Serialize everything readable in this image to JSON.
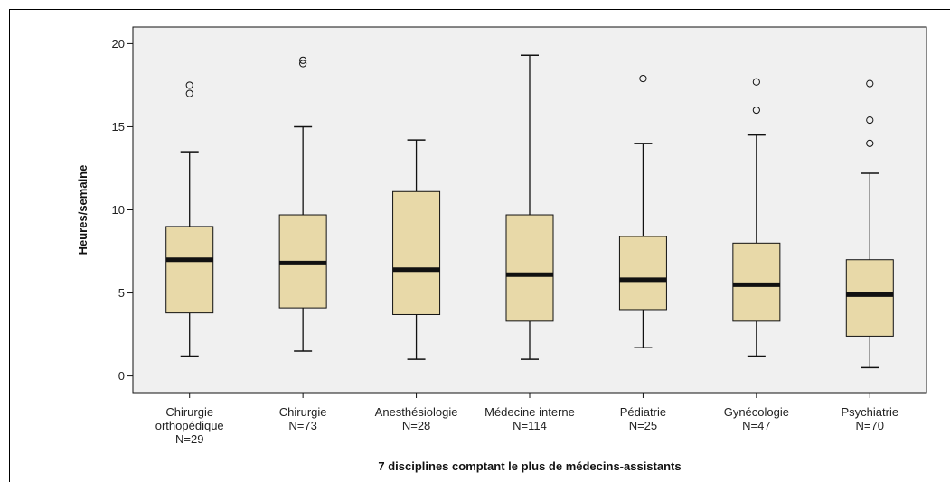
{
  "chart_data": {
    "type": "boxplot",
    "title": "",
    "xlabel": "7 disciplines comptant le plus de médecins-assistants",
    "ylabel": "Heures/semaine",
    "ylim": [
      -1,
      21
    ],
    "yticks": [
      0,
      5,
      10,
      15,
      20
    ],
    "ytick_labels": [
      "0",
      "5",
      "10",
      "15",
      "20"
    ],
    "grid": false,
    "legend": "none",
    "colors": {
      "box_fill": "#e8d9a8",
      "plot_bg": "#f0f0f0",
      "stroke": "#111111",
      "median": "#111111"
    },
    "categories": [
      {
        "label_lines": [
          "Chirurgie",
          "orthopédique",
          "N=29"
        ],
        "min": 1.2,
        "q1": 3.8,
        "median": 7.0,
        "q3": 9.0,
        "max": 13.5,
        "outliers": [
          17.0,
          17.5
        ]
      },
      {
        "label_lines": [
          "Chirurgie",
          "N=73"
        ],
        "min": 1.5,
        "q1": 4.1,
        "median": 6.8,
        "q3": 9.7,
        "max": 15.0,
        "outliers": [
          18.8,
          19.0
        ]
      },
      {
        "label_lines": [
          "Anesthésiologie",
          "N=28"
        ],
        "min": 1.0,
        "q1": 3.7,
        "median": 6.4,
        "q3": 11.1,
        "max": 14.2,
        "outliers": []
      },
      {
        "label_lines": [
          "Médecine interne",
          "N=114"
        ],
        "min": 1.0,
        "q1": 3.3,
        "median": 6.1,
        "q3": 9.7,
        "max": 19.3,
        "outliers": []
      },
      {
        "label_lines": [
          "Pédiatrie",
          "N=25"
        ],
        "min": 1.7,
        "q1": 4.0,
        "median": 5.8,
        "q3": 8.4,
        "max": 14.0,
        "outliers": [
          17.9
        ]
      },
      {
        "label_lines": [
          "Gynécologie",
          "N=47"
        ],
        "min": 1.2,
        "q1": 3.3,
        "median": 5.5,
        "q3": 8.0,
        "max": 14.5,
        "outliers": [
          16.0,
          17.7
        ]
      },
      {
        "label_lines": [
          "Psychiatrie",
          "N=70"
        ],
        "min": 0.5,
        "q1": 2.4,
        "median": 4.9,
        "q3": 7.0,
        "max": 12.2,
        "outliers": [
          14.0,
          15.4,
          17.6
        ]
      }
    ]
  }
}
